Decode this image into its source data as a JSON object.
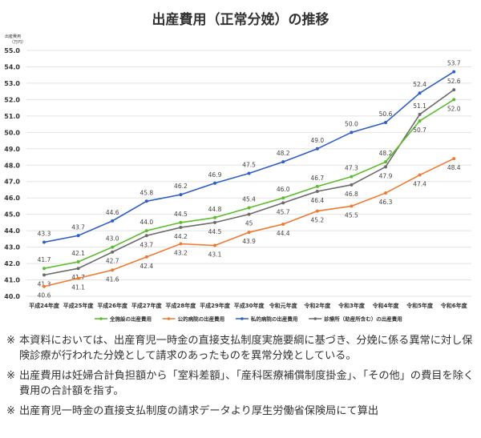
{
  "chart_data": {
    "type": "line",
    "title": "出産費用（正常分娩）の推移",
    "ylabel": "出産費用（万円）",
    "ylabel_lines": [
      "出産費用",
      "（万円）"
    ],
    "ylim": [
      40.0,
      55.0
    ],
    "yticks": [
      "40.0",
      "41.0",
      "42.0",
      "43.0",
      "44.0",
      "45.0",
      "46.0",
      "47.0",
      "48.0",
      "49.0",
      "50.0",
      "51.0",
      "52.0",
      "53.0",
      "54.0",
      "55.0"
    ],
    "grid": true,
    "legend": "bottom",
    "categories": [
      "平成24年度",
      "平成25年度",
      "平成26年度",
      "平成27年度",
      "平成28年度",
      "平成29年度",
      "平成30年度",
      "令和元年度",
      "令和2年度",
      "令和3年度",
      "令和4年度",
      "令和5年度",
      "令和6年度"
    ],
    "series": [
      {
        "name": "全施設の出産費用",
        "color": "#5cbd2e",
        "values": [
          41.7,
          42.1,
          43.0,
          44.0,
          44.5,
          44.8,
          45.4,
          46.0,
          46.7,
          47.3,
          48.2,
          50.7,
          52.0
        ],
        "labels": [
          "41.7",
          "42.1",
          "43.0",
          "44.0",
          "44.5",
          "44.8",
          "45.4",
          "46.0",
          "46.7",
          "47.3",
          "48.2",
          "50.7",
          "52.0"
        ]
      },
      {
        "name": "公的病院の出産費用",
        "color": "#f07a30",
        "values": [
          40.6,
          41.1,
          41.6,
          42.4,
          43.2,
          43.1,
          43.9,
          44.4,
          45.2,
          45.5,
          46.3,
          47.4,
          48.4
        ],
        "labels": [
          "40.6",
          "41.1",
          "41.6",
          "42.4",
          "43.2",
          "43.1",
          "43.9",
          "44.4",
          "45.2",
          "45.5",
          "46.3",
          "47.4",
          "48.4"
        ]
      },
      {
        "name": "私的病院の出産費用",
        "color": "#2f5fc4",
        "values": [
          43.3,
          43.7,
          44.6,
          45.8,
          46.2,
          46.9,
          47.5,
          48.2,
          49.0,
          50.0,
          50.6,
          52.4,
          53.7
        ],
        "labels": [
          "43.3",
          "43.7",
          "44.6",
          "45.8",
          "46.2",
          "46.9",
          "47.5",
          "48.2",
          "49.0",
          "50.0",
          "50.6",
          "52.4",
          "53.7"
        ]
      },
      {
        "name": "診療所（助産所含む）の出産費用",
        "color": "#6b6b6b",
        "values": [
          41.3,
          41.7,
          42.7,
          43.7,
          44.2,
          44.5,
          45,
          45.7,
          46.4,
          46.8,
          47.9,
          51.1,
          52.6
        ],
        "labels": [
          "41.3",
          "41.7",
          "42.7",
          "43.7",
          "44.2",
          "44.5",
          "45",
          "45.7",
          "46.4",
          "46.8",
          "47.9",
          "51.1",
          "52.6"
        ]
      }
    ]
  },
  "notes": [
    {
      "mark": "※",
      "text": "本資料においては、出産育児一時金の直接支払制度実施要綱に基づき、分娩に係る異常に対し保険診療が行われた分娩として請求のあったものを異常分娩としている。"
    },
    {
      "mark": "※",
      "text": "出産費用は妊婦合計負担額から「室料差額」、「産科医療補償制度掛金」、「その他」の費目を除く費用の合計額を指す。"
    },
    {
      "mark": "※",
      "text": "出産育児一時金の直接支払制度の請求データより厚生労働省保険局にて算出"
    }
  ]
}
